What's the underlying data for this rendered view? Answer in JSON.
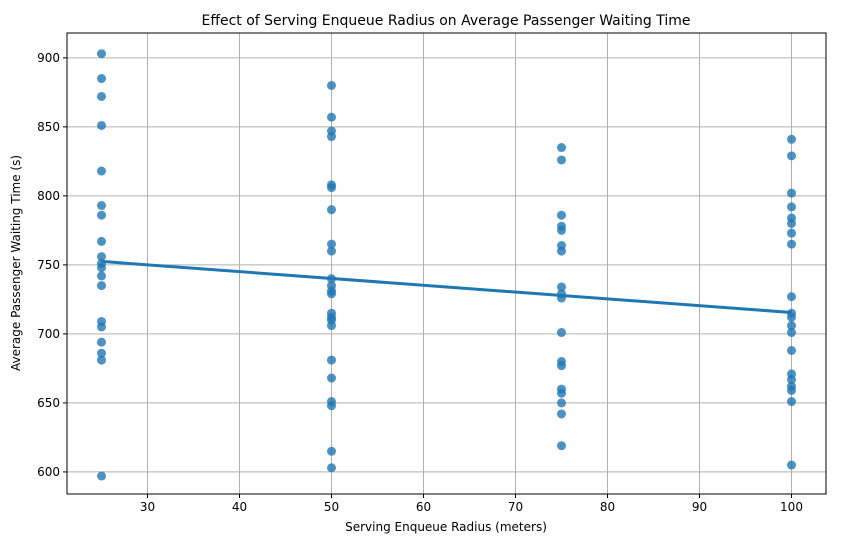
{
  "chart_data": {
    "type": "scatter",
    "title": "Effect of Serving Enqueue Radius on Average Passenger Waiting Time",
    "xlabel": "Serving Enqueue Radius (meters)",
    "ylabel": "Average Passenger Waiting Time (s)",
    "xlim": [
      21.25,
      103.75
    ],
    "ylim": [
      584,
      918
    ],
    "xticks": [
      30,
      40,
      50,
      60,
      70,
      80,
      90,
      100
    ],
    "yticks": [
      600,
      650,
      700,
      750,
      800,
      850,
      900
    ],
    "grid": true,
    "colors": {
      "points": "#1f77b4",
      "line": "#1f77b4"
    },
    "points": [
      [
        25,
        903
      ],
      [
        25,
        885
      ],
      [
        25,
        872
      ],
      [
        25,
        851
      ],
      [
        25,
        818
      ],
      [
        25,
        793
      ],
      [
        25,
        786
      ],
      [
        25,
        767
      ],
      [
        25,
        756
      ],
      [
        25,
        751
      ],
      [
        25,
        748
      ],
      [
        25,
        742
      ],
      [
        25,
        735
      ],
      [
        25,
        709
      ],
      [
        25,
        705
      ],
      [
        25,
        694
      ],
      [
        25,
        686
      ],
      [
        25,
        681
      ],
      [
        25,
        597
      ],
      [
        50,
        880
      ],
      [
        50,
        857
      ],
      [
        50,
        847
      ],
      [
        50,
        843
      ],
      [
        50,
        808
      ],
      [
        50,
        806
      ],
      [
        50,
        790
      ],
      [
        50,
        765
      ],
      [
        50,
        760
      ],
      [
        50,
        740
      ],
      [
        50,
        735
      ],
      [
        50,
        731
      ],
      [
        50,
        729
      ],
      [
        50,
        715
      ],
      [
        50,
        712
      ],
      [
        50,
        710
      ],
      [
        50,
        706
      ],
      [
        50,
        681
      ],
      [
        50,
        668
      ],
      [
        50,
        651
      ],
      [
        50,
        648
      ],
      [
        50,
        615
      ],
      [
        50,
        603
      ],
      [
        75,
        835
      ],
      [
        75,
        826
      ],
      [
        75,
        786
      ],
      [
        75,
        778
      ],
      [
        75,
        775
      ],
      [
        75,
        764
      ],
      [
        75,
        760
      ],
      [
        75,
        734
      ],
      [
        75,
        729
      ],
      [
        75,
        726
      ],
      [
        75,
        701
      ],
      [
        75,
        680
      ],
      [
        75,
        677
      ],
      [
        75,
        660
      ],
      [
        75,
        657
      ],
      [
        75,
        650
      ],
      [
        75,
        642
      ],
      [
        75,
        619
      ],
      [
        100,
        841
      ],
      [
        100,
        829
      ],
      [
        100,
        802
      ],
      [
        100,
        792
      ],
      [
        100,
        784
      ],
      [
        100,
        780
      ],
      [
        100,
        773
      ],
      [
        100,
        765
      ],
      [
        100,
        727
      ],
      [
        100,
        715
      ],
      [
        100,
        712
      ],
      [
        100,
        706
      ],
      [
        100,
        701
      ],
      [
        100,
        688
      ],
      [
        100,
        671
      ],
      [
        100,
        667
      ],
      [
        100,
        662
      ],
      [
        100,
        659
      ],
      [
        100,
        651
      ],
      [
        100,
        605
      ]
    ],
    "regression_line": {
      "x": [
        25,
        100
      ],
      "y": [
        752.5,
        715.5
      ]
    }
  }
}
